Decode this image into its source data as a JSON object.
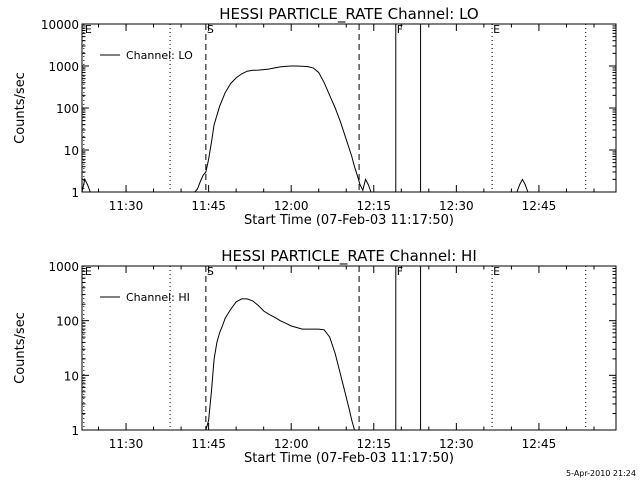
{
  "chart_data": [
    {
      "type": "line",
      "title": "HESSI PARTICLE_RATE Channel: LO",
      "xlabel": "Start Time (07-Feb-03 11:17:50)",
      "ylabel": "Counts/sec",
      "x_unit": "time (HH:MM:SS, 07-Feb-03)",
      "xlim": [
        "11:22:00",
        "12:59:00"
      ],
      "ylim": [
        1,
        10000
      ],
      "y_scale": "log",
      "x_ticks": [
        "11:30",
        "11:45",
        "12:00",
        "12:15",
        "12:30",
        "12:45"
      ],
      "y_ticks": [
        {
          "value": 1,
          "label": "1"
        },
        {
          "value": 10,
          "label": "10"
        },
        {
          "value": 100,
          "label": "100"
        },
        {
          "value": 1000,
          "label": "1000"
        },
        {
          "value": 10000,
          "label": "10000"
        }
      ],
      "legend": {
        "position": "top-left",
        "entries": [
          "Channel: LO"
        ]
      },
      "grid": false,
      "series": [
        {
          "name": "Channel: LO",
          "x": [
            "11:22:00",
            "11:22:30",
            "11:23:00",
            "11:23:30",
            "11:24:00",
            "11:42:30",
            "11:43:00",
            "11:43:30",
            "11:44:00",
            "11:44:30",
            "11:45:00",
            "11:45:30",
            "11:46:00",
            "11:47:00",
            "11:48:00",
            "11:49:00",
            "11:50:00",
            "11:51:00",
            "11:52:00",
            "11:53:00",
            "11:54:00",
            "11:55:00",
            "11:56:00",
            "11:57:00",
            "11:58:00",
            "11:59:00",
            "12:00:00",
            "12:01:00",
            "12:02:00",
            "12:03:00",
            "12:04:00",
            "12:05:00",
            "12:06:00",
            "12:07:00",
            "12:08:00",
            "12:09:00",
            "12:10:00",
            "12:11:00",
            "12:11:30",
            "12:12:00",
            "12:12:30",
            "12:13:00",
            "12:13:30",
            "12:14:00",
            "12:14:30",
            "12:41:00",
            "12:41:30",
            "12:42:00",
            "12:42:30",
            "12:43:00"
          ],
          "y": [
            1,
            2,
            1.5,
            1,
            null,
            1,
            1.2,
            1.8,
            2.5,
            3,
            6,
            15,
            40,
            110,
            230,
            380,
            520,
            650,
            750,
            790,
            800,
            820,
            850,
            900,
            950,
            980,
            1000,
            1000,
            990,
            970,
            900,
            700,
            400,
            200,
            100,
            45,
            18,
            7,
            4,
            2.5,
            1.5,
            1.1,
            2,
            1.5,
            1,
            1,
            1.5,
            2,
            1.5,
            1
          ]
        }
      ],
      "events": [
        {
          "label": "E",
          "time": "11:22:20",
          "line": "dotted"
        },
        {
          "label": "S",
          "time": "11:44:30",
          "line": "dashed"
        },
        {
          "label": "",
          "time": "11:38:00",
          "line": "dotted"
        },
        {
          "label": "",
          "time": "12:12:20",
          "line": "dashed"
        },
        {
          "label": "F",
          "time": "12:19:00",
          "line": "solid"
        },
        {
          "label": "",
          "time": "12:23:30",
          "line": "solid"
        },
        {
          "label": "E",
          "time": "12:36:30",
          "line": "dotted"
        },
        {
          "label": "",
          "time": "12:53:30",
          "line": "dotted"
        }
      ]
    },
    {
      "type": "line",
      "title": "HESSI PARTICLE_RATE Channel: HI",
      "xlabel": "Start Time (07-Feb-03 11:17:50)",
      "ylabel": "Counts/sec",
      "x_unit": "time (HH:MM:SS, 07-Feb-03)",
      "xlim": [
        "11:22:00",
        "12:59:00"
      ],
      "ylim": [
        1,
        1000
      ],
      "y_scale": "log",
      "x_ticks": [
        "11:30",
        "11:45",
        "12:00",
        "12:15",
        "12:30",
        "12:45"
      ],
      "y_ticks": [
        {
          "value": 1,
          "label": "1"
        },
        {
          "value": 10,
          "label": "10"
        },
        {
          "value": 100,
          "label": "100"
        },
        {
          "value": 1000,
          "label": "1000"
        }
      ],
      "legend": {
        "position": "top-left",
        "entries": [
          "Channel: HI"
        ]
      },
      "grid": false,
      "series": [
        {
          "name": "Channel: HI",
          "x": [
            "11:44:30",
            "11:45:00",
            "11:45:30",
            "11:46:00",
            "11:46:30",
            "11:47:00",
            "11:47:30",
            "11:48:00",
            "11:49:00",
            "11:50:00",
            "11:51:00",
            "11:52:00",
            "11:53:00",
            "11:54:00",
            "11:55:00",
            "11:56:00",
            "11:57:00",
            "11:58:00",
            "11:59:00",
            "12:00:00",
            "12:01:00",
            "12:02:00",
            "12:03:00",
            "12:04:00",
            "12:05:00",
            "12:06:00",
            "12:07:00",
            "12:08:00",
            "12:09:00",
            "12:10:00",
            "12:10:30",
            "12:11:00",
            "12:11:30"
          ],
          "y": [
            1,
            1.5,
            5,
            20,
            40,
            60,
            80,
            110,
            160,
            220,
            250,
            250,
            230,
            190,
            150,
            130,
            115,
            100,
            90,
            80,
            75,
            70,
            70,
            70,
            70,
            68,
            50,
            25,
            10,
            4,
            2.5,
            1.5,
            1
          ]
        }
      ],
      "events": [
        {
          "label": "E",
          "time": "11:22:20",
          "line": "dotted"
        },
        {
          "label": "S",
          "time": "11:44:30",
          "line": "dashed"
        },
        {
          "label": "",
          "time": "11:38:00",
          "line": "dotted"
        },
        {
          "label": "",
          "time": "12:12:20",
          "line": "dashed"
        },
        {
          "label": "F",
          "time": "12:19:00",
          "line": "solid"
        },
        {
          "label": "",
          "time": "12:23:30",
          "line": "solid"
        },
        {
          "label": "E",
          "time": "12:36:30",
          "line": "dotted"
        },
        {
          "label": "",
          "time": "12:53:30",
          "line": "dotted"
        }
      ]
    }
  ],
  "footer": {
    "timestamp": "5-Apr-2010 21:24"
  }
}
